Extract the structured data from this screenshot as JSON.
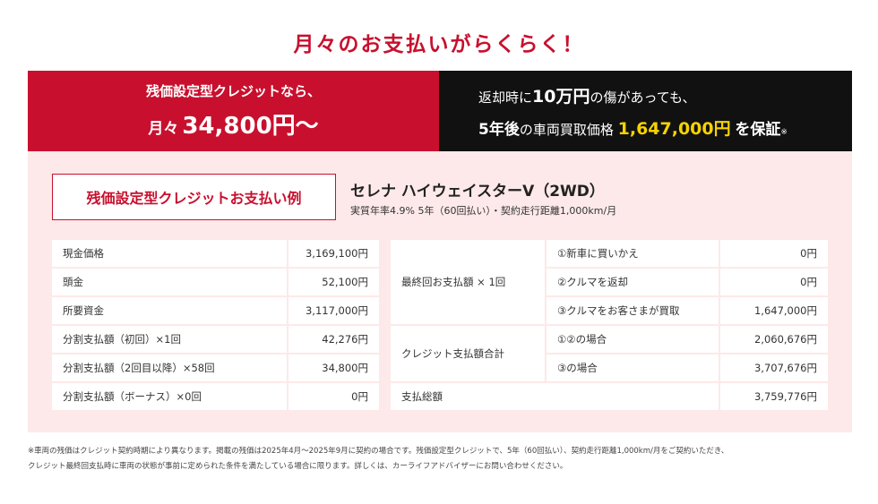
{
  "heading": "月々のお支払いがらくらく！",
  "banner": {
    "left_line1": "残価設定型クレジットなら、",
    "left_prefix": "月々",
    "left_amount": "34,800円～",
    "right_line1_pre": "返却時に",
    "right_line1_em": "10万円",
    "right_line1_post": "の傷があっても、",
    "right_line2_em": "5年後",
    "right_line2_mid": "の車両買取価格",
    "right_line2_price": "1,647,000円",
    "right_line2_post": "を保証",
    "right_line2_note": "※"
  },
  "plan": {
    "box_label": "残価設定型クレジットお支払い例",
    "car_name": "セレナ ハイウェイスターV（2WD）",
    "conditions": "実質年率4.9% 5年（60回払い）・契約走行距離1,000km/月"
  },
  "left_table": [
    {
      "label": "現金価格",
      "value": "3,169,100円"
    },
    {
      "label": "頭金",
      "value": "52,100円"
    },
    {
      "label": "所要資金",
      "value": "3,117,000円"
    },
    {
      "label": "分割支払額（初回）×1回",
      "value": "42,276円"
    },
    {
      "label": "分割支払額（2回目以降）×58回",
      "value": "34,800円"
    },
    {
      "label": "分割支払額（ボーナス）×0回",
      "value": "0円"
    }
  ],
  "right_table": {
    "final_label": "最終回お支払額 × 1回",
    "final_options": [
      {
        "label": "①新車に買いかえ",
        "value": "0円"
      },
      {
        "label": "②クルマを返却",
        "value": "0円"
      },
      {
        "label": "③クルマをお客さまが買取",
        "value": "1,647,000円"
      }
    ],
    "credit_label": "クレジット支払額合計",
    "credit_options": [
      {
        "label": "①②の場合",
        "value": "2,060,676円"
      },
      {
        "label": "③の場合",
        "value": "3,707,676円"
      }
    ],
    "total_label": "支払総額",
    "total_value": "3,759,776円"
  },
  "footnote_line1": "※車両の残価はクレジット契約時期により異なります。掲載の残価は2025年4月～2025年9月に契約の場合です。残価設定型クレジットで、5年（60回払い）、契約走行距離1,000km/月をご契約いただき、",
  "footnote_line2": "クレジット最終回支払時に車両の状態が事前に定められた条件を満たしている場合に限ります。詳しくは、カーライフアドバイザーにお問い合わせください。",
  "colors": {
    "brand_red": "#c8102e",
    "panel_pink": "#fde9e9",
    "dark": "#111111",
    "gold": "#f5d300"
  }
}
